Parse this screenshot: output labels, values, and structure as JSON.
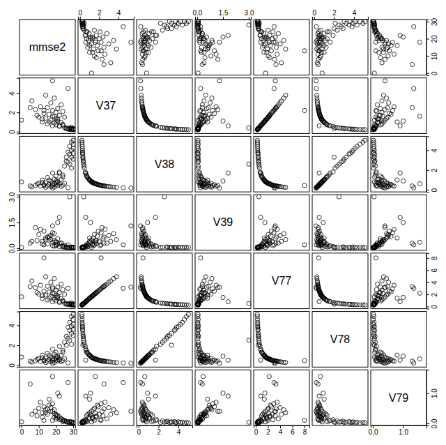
{
  "chart_data": {
    "type": "scatter_matrix",
    "marker": "circle",
    "color": "#000000",
    "variables": [
      {
        "name": "mmse2",
        "lim": [
          -1.2,
          31.2
        ],
        "ticks": [
          0,
          10,
          20,
          30
        ],
        "values": [
          30,
          29,
          30,
          28,
          30,
          29,
          27,
          30,
          28,
          29,
          30,
          26,
          27,
          28,
          25,
          29,
          22,
          18,
          20,
          24,
          15,
          19,
          23,
          12,
          20,
          17,
          21,
          14,
          25,
          10,
          19,
          22,
          16,
          13,
          20,
          24,
          18,
          8,
          21,
          15,
          11,
          23,
          17,
          6,
          19,
          14,
          27,
          18,
          5,
          18,
          13,
          0,
          26,
          22,
          16,
          12,
          21,
          9,
          24,
          20
        ]
      },
      {
        "name": "V37",
        "lim": [
          -0.2,
          5.6
        ],
        "ticks": [
          0,
          2,
          4
        ],
        "values": [
          0.2,
          0.21,
          0.22,
          0.23,
          0.24,
          0.25,
          0.26,
          0.27,
          0.28,
          0.3,
          0.32,
          0.34,
          0.36,
          0.38,
          0.42,
          0.45,
          0.55,
          0.6,
          0.7,
          0.75,
          0.8,
          0.9,
          0.95,
          1.0,
          1.1,
          1.2,
          1.3,
          1.4,
          1.5,
          1.5,
          1.6,
          1.7,
          1.8,
          1.9,
          2.0,
          2.1,
          2.2,
          2.3,
          2.4,
          2.5,
          2.6,
          2.8,
          3.0,
          3.2,
          3.5,
          3.8,
          4.5,
          5.3,
          2.5,
          1.6,
          2.2,
          1.2,
          0.3,
          0.6,
          1.0,
          1.3,
          1.1,
          1.7,
          0.65,
          1.35
        ]
      },
      {
        "name": "V38",
        "lim": [
          -0.2,
          5.4
        ],
        "ticks": [
          0,
          2,
          4
        ],
        "values": [
          5.0,
          4.8,
          4.6,
          4.4,
          4.2,
          4.0,
          3.8,
          3.7,
          3.6,
          3.3,
          3.1,
          2.9,
          2.8,
          2.6,
          2.4,
          2.2,
          1.8,
          1.7,
          1.4,
          1.3,
          1.25,
          1.1,
          1.05,
          1.0,
          0.9,
          0.85,
          0.77,
          0.72,
          0.67,
          0.66,
          0.63,
          0.59,
          0.56,
          0.53,
          0.5,
          0.48,
          0.45,
          0.43,
          0.42,
          0.4,
          0.38,
          0.36,
          0.33,
          0.31,
          0.29,
          0.26,
          0.22,
          0.19,
          0.4,
          0.62,
          0.45,
          0.8,
          3.3,
          1.7,
          1.0,
          0.75,
          0.9,
          0.6,
          1.5,
          0.74
        ]
      },
      {
        "name": "V39",
        "lim": [
          -0.12,
          3.12
        ],
        "ticks": [
          {
            "value": 0,
            "label": "0.0"
          },
          {
            "value": 1.5,
            "label": "1.5"
          },
          {
            "value": 3,
            "label": "3.0"
          }
        ],
        "values": [
          0.05,
          0.04,
          0.06,
          0.03,
          0.05,
          0.07,
          0.02,
          0.04,
          0.06,
          0.03,
          0.05,
          0.08,
          0.04,
          3.0,
          0.06,
          0.05,
          0.1,
          0.15,
          0.2,
          0.08,
          0.25,
          0.12,
          0.3,
          0.4,
          0.35,
          0.5,
          0.22,
          0.6,
          0.18,
          0.8,
          0.45,
          0.28,
          0.7,
          1.0,
          0.38,
          0.15,
          0.9,
          1.2,
          0.55,
          0.65,
          1.1,
          0.3,
          0.75,
          0.4,
          0.85,
          0.5,
          0.2,
          1.3,
          0.3,
          0.35,
          0.2,
          0.05,
          0.05,
          1.8,
          0.6,
          0.25,
          1.5,
          0.45,
          0.1,
          0.15
        ]
      },
      {
        "name": "V77",
        "lim": [
          -0.35,
          8.8
        ],
        "ticks": [
          0,
          2,
          4,
          6,
          8
        ],
        "values": [
          0.25,
          0.27,
          0.28,
          0.3,
          0.31,
          0.32,
          0.34,
          0.36,
          0.37,
          0.4,
          0.42,
          0.45,
          0.48,
          0.5,
          0.55,
          0.6,
          0.7,
          0.8,
          0.95,
          1.0,
          1.1,
          1.2,
          1.3,
          1.35,
          1.5,
          1.6,
          1.75,
          1.9,
          2.0,
          2.05,
          2.15,
          2.3,
          2.4,
          2.55,
          2.7,
          2.8,
          2.95,
          3.1,
          3.2,
          3.35,
          3.5,
          3.7,
          4.0,
          4.2,
          4.6,
          4.9,
          3.0,
          3.2,
          3.3,
          2.2,
          8.0,
          1.6,
          0.4,
          0.8,
          1.4,
          1.8,
          1.5,
          2.3,
          0.85,
          1.85
        ]
      },
      {
        "name": "V78",
        "lim": [
          -0.2,
          5.4
        ],
        "ticks": [
          0,
          2,
          4
        ],
        "values": [
          5.1,
          4.9,
          4.6,
          4.3,
          4.1,
          3.9,
          3.8,
          3.6,
          3.5,
          3.2,
          3.0,
          2.9,
          2.7,
          2.5,
          2.3,
          2.1,
          1.9,
          1.6,
          1.3,
          1.3,
          1.2,
          1.1,
          1.0,
          1.0,
          0.9,
          0.8,
          0.75,
          0.7,
          0.65,
          0.66,
          0.6,
          0.57,
          0.55,
          0.52,
          0.49,
          0.47,
          0.45,
          0.42,
          0.41,
          0.4,
          0.38,
          0.35,
          0.33,
          0.31,
          0.28,
          0.26,
          0.22,
          0.19,
          0.39,
          0.62,
          0.45,
          0.8,
          2.0,
          0.5,
          1.0,
          0.74,
          0.9,
          0.58,
          1.5,
          0.72
        ]
      },
      {
        "name": "V79",
        "lim": [
          -0.07,
          1.77
        ],
        "ticks": [
          {
            "value": 0,
            "label": "0.0"
          },
          {
            "value": 1,
            "label": "1.0"
          }
        ],
        "values": [
          0.02,
          0.03,
          0.01,
          0.04,
          0.02,
          0.05,
          0.03,
          0.02,
          0.06,
          0.04,
          0.03,
          0.07,
          0.05,
          0.04,
          0.08,
          0.03,
          0.12,
          0.1,
          0.25,
          0.06,
          0.3,
          0.2,
          0.15,
          0.35,
          0.28,
          0.4,
          0.18,
          0.45,
          0.1,
          0.5,
          0.33,
          0.22,
          0.6,
          0.55,
          0.3,
          0.12,
          0.65,
          0.4,
          0.25,
          0.48,
          0.7,
          0.15,
          0.52,
          0.3,
          0.45,
          0.35,
          1.35,
          0.4,
          1.3,
          1.55,
          0.1,
          0.05,
          0.05,
          0.9,
          0.8,
          0.2,
          1.0,
          0.25,
          0.08,
          0.14
        ]
      }
    ]
  }
}
